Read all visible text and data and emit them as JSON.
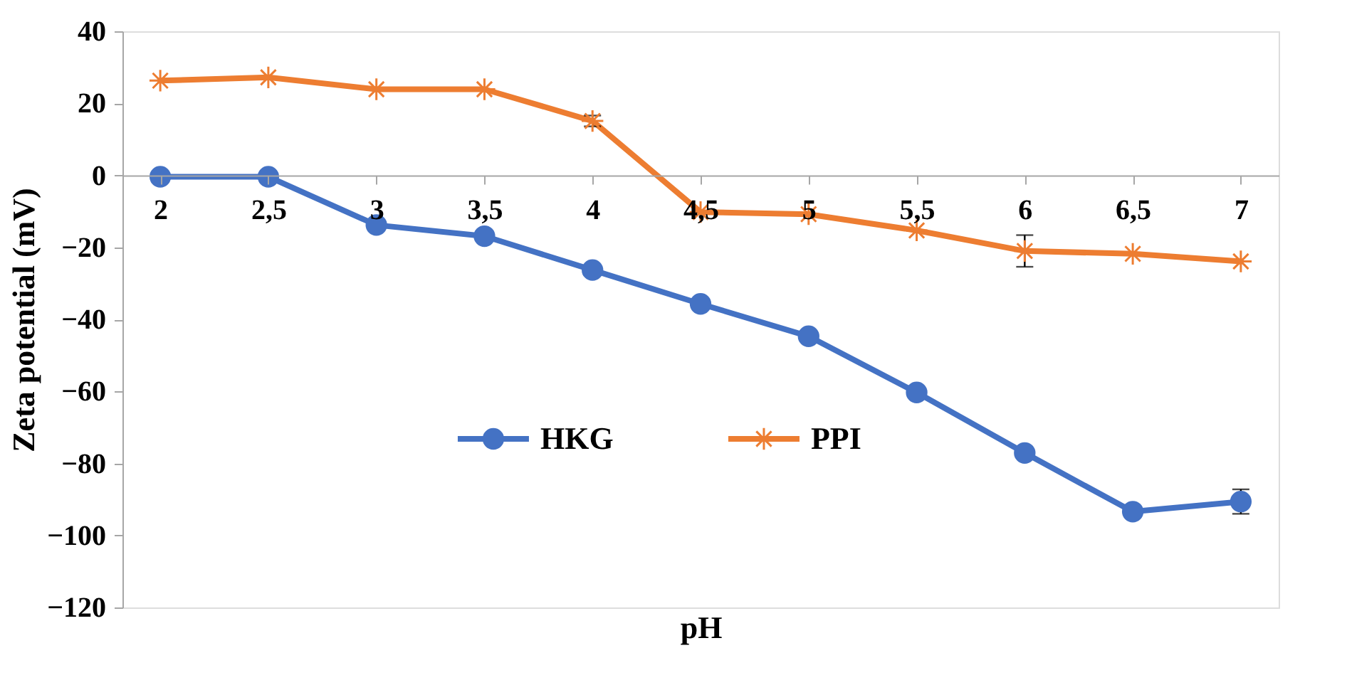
{
  "chart_data": {
    "type": "line",
    "xlabel": "pH",
    "ylabel": "Zeta potential  (mV)",
    "categories": [
      "2",
      "2,5",
      "3",
      "3,5",
      "4",
      "4,5",
      "5",
      "5,5",
      "6",
      "6,5",
      "7"
    ],
    "series": [
      {
        "name": "HKG",
        "color": "#4472c4",
        "marker": "circle",
        "values": [
          -0.4,
          -0.4,
          -13.8,
          -16.9,
          -26.3,
          -35.7,
          -44.7,
          -60.3,
          -77.1,
          -93.4,
          -90.6
        ],
        "errors": [
          null,
          null,
          null,
          null,
          null,
          null,
          null,
          null,
          null,
          null,
          3.4
        ]
      },
      {
        "name": "PPI",
        "color": "#ed7d31",
        "marker": "cross",
        "values": [
          26.3,
          27.2,
          23.9,
          23.9,
          15.1,
          -10.2,
          -10.8,
          -15.3,
          -21,
          -21.8,
          -23.9
        ],
        "errors": [
          null,
          null,
          null,
          null,
          1.5,
          null,
          null,
          null,
          4.4,
          null,
          null
        ]
      }
    ],
    "ylim": [
      -120,
      40
    ],
    "yticks": [
      -120,
      -100,
      -80,
      -60,
      -40,
      -20,
      0,
      20,
      40
    ],
    "grid": false,
    "legend": "bottom",
    "line_style": "solid"
  }
}
